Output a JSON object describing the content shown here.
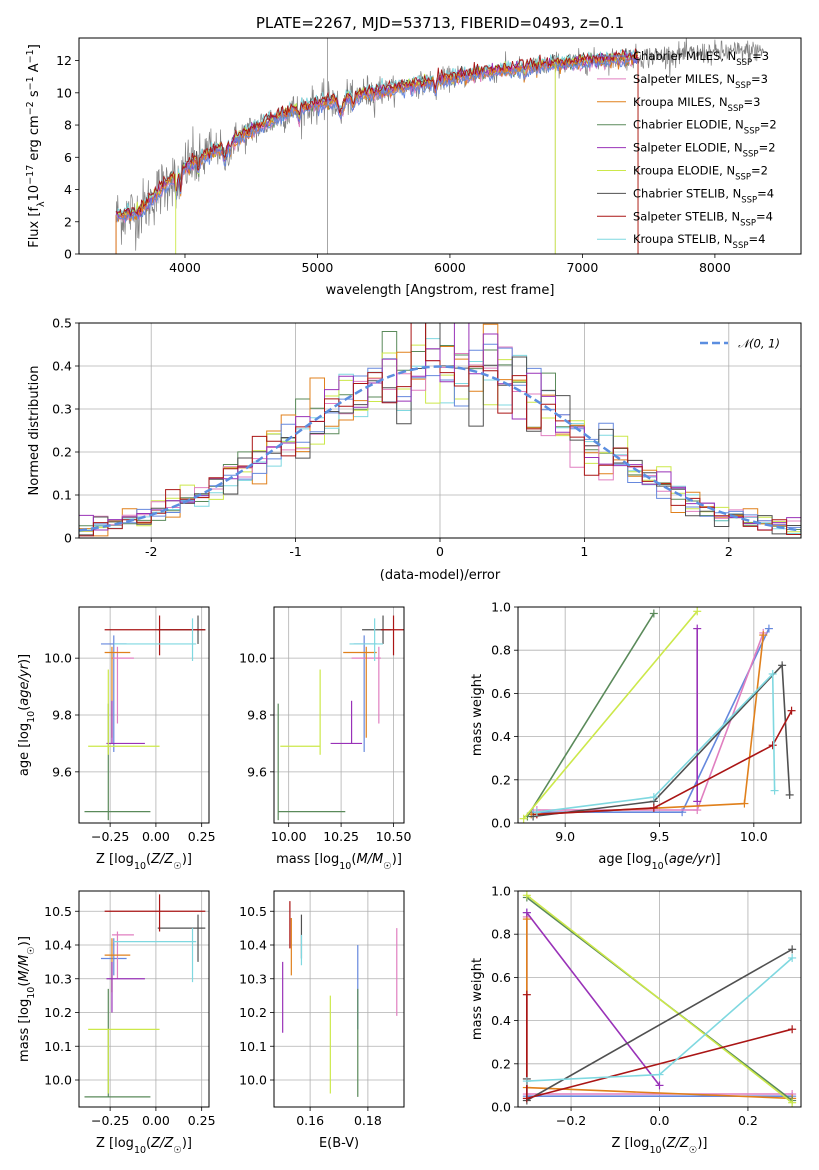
{
  "figure_title": "PLATE=2267, MJD=53713, FIBERID=0493, z=0.1",
  "series_names": [
    "Chabrier MILES, N_SSP=3",
    "Salpeter MILES, N_SSP=3",
    "Kroupa MILES, N_SSP=3",
    "Chabrier ELODIE, N_SSP=2",
    "Salpeter ELODIE, N_SSP=2",
    "Kroupa ELODIE, N_SSP=2",
    "Chabrier STELIB, N_SSP=4",
    "Salpeter STELIB, N_SSP=4",
    "Kroupa STELIB, N_SSP=4"
  ],
  "colors": {
    "data": "#808080",
    "series": [
      "#6688dd",
      "#e07fc0",
      "#e0801c",
      "#5a8a5a",
      "#9932b8",
      "#cce84a",
      "#505050",
      "#aa1515",
      "#7fd8e0"
    ],
    "normal": "#5b8ee0"
  },
  "chart_data": [
    {
      "id": "spectrum",
      "type": "line",
      "title": "PLATE=2267, MJD=53713, FIBERID=0493, z=0.1",
      "xlabel": "wavelength [Angstrom, rest frame]",
      "ylabel": "Flux [f_λ 10^-17 erg cm^-2 s^-1 A^-1]",
      "xlim": [
        3200,
        8650
      ],
      "ylim": [
        0,
        13.4
      ],
      "xticks": [
        4000,
        5000,
        6000,
        7000,
        8000
      ],
      "yticks": [
        0,
        2,
        4,
        6,
        8,
        10,
        12
      ],
      "grid": false,
      "legend": "upper right",
      "continuum": [
        [
          3500,
          2.4
        ],
        [
          3650,
          2.6
        ],
        [
          3750,
          3.4
        ],
        [
          3900,
          4.8
        ],
        [
          4000,
          5.4
        ],
        [
          4200,
          6.3
        ],
        [
          4400,
          7.2
        ],
        [
          4600,
          8.1
        ],
        [
          4800,
          8.9
        ],
        [
          5000,
          9.3
        ],
        [
          5200,
          9.7
        ],
        [
          5400,
          10.0
        ],
        [
          5600,
          10.3
        ],
        [
          5800,
          10.6
        ],
        [
          6000,
          10.9
        ],
        [
          6200,
          11.2
        ],
        [
          6500,
          11.5
        ],
        [
          6800,
          11.8
        ],
        [
          7100,
          12.0
        ],
        [
          7400,
          12.2
        ],
        [
          7800,
          12.4
        ],
        [
          8300,
          12.6
        ]
      ],
      "data_range": [
        3480,
        8370
      ],
      "model_range": [
        3480,
        7420
      ]
    },
    {
      "id": "residuals",
      "type": "histogram",
      "xlabel": "(data-model)/error",
      "ylabel": "Normed distribution",
      "xlim": [
        -2.5,
        2.5
      ],
      "ylim": [
        0,
        0.5
      ],
      "xticks": [
        -2,
        -1,
        0,
        1,
        2
      ],
      "yticks": [
        0.0,
        0.1,
        0.2,
        0.3,
        0.4,
        0.5
      ],
      "grid": true,
      "bins": 50,
      "reference_label": "𝒩(0, 1)",
      "reference": {
        "mean": 0,
        "sigma": 1
      },
      "legend": "upper right"
    },
    {
      "id": "age-Z",
      "type": "errorbar",
      "xlabel": "Z [log10(Z/Z☉)]",
      "ylabel": "age  [log10(age/yr)]",
      "xlim": [
        -0.42,
        0.29
      ],
      "ylim": [
        9.42,
        10.18
      ],
      "xticks": [
        -0.25,
        0.0,
        0.25
      ],
      "xticklabels": [
        "−0.25",
        "0.00",
        "0.25"
      ],
      "yticks": [
        9.6,
        9.8,
        10.0
      ],
      "yticklabels": [
        "9.6",
        "9.8",
        "10.0"
      ],
      "grid": true,
      "points": [
        {
          "s": 0,
          "x": -0.23,
          "xe": [
            0.07,
            0.07
          ],
          "y": 10.05,
          "ye": [
            0.38,
            0.03
          ]
        },
        {
          "s": 1,
          "x": -0.21,
          "xe": [
            0.03,
            0.09
          ],
          "y": 10.0,
          "ye": [
            0.23,
            0.04
          ]
        },
        {
          "s": 2,
          "x": -0.24,
          "xe": [
            0.04,
            0.1
          ],
          "y": 10.02,
          "ye": [
            0.3,
            0.02
          ]
        },
        {
          "s": 3,
          "x": -0.26,
          "xe": [
            0.13,
            0.23
          ],
          "y": 9.46,
          "ye": [
            0.03,
            0.38
          ]
        },
        {
          "s": 4,
          "x": -0.24,
          "xe": [
            0.03,
            0.18
          ],
          "y": 9.7,
          "ye": [
            0.0,
            0.15
          ]
        },
        {
          "s": 5,
          "x": -0.26,
          "xe": [
            0.11,
            0.28
          ],
          "y": 9.69,
          "ye": [
            0.03,
            0.27
          ]
        },
        {
          "s": 6,
          "x": 0.23,
          "xe": [
            0.22,
            0.04
          ],
          "y": 10.1,
          "ye": [
            0.05,
            0.05
          ]
        },
        {
          "s": 7,
          "x": 0.02,
          "xe": [
            0.3,
            0.25
          ],
          "y": 10.1,
          "ye": [
            0.09,
            0.05
          ]
        },
        {
          "s": 8,
          "x": 0.2,
          "xe": [
            0.43,
            0.02
          ],
          "y": 10.05,
          "ye": [
            0.06,
            0.09
          ]
        }
      ]
    },
    {
      "id": "age-mass",
      "type": "errorbar",
      "xlabel": "mass [log10(M/M☉)]",
      "ylabel": "",
      "xlim": [
        9.93,
        10.55
      ],
      "ylim": [
        9.42,
        10.18
      ],
      "xticks": [
        10.0,
        10.25,
        10.5
      ],
      "xticklabels": [
        "10.00",
        "10.25",
        "10.50"
      ],
      "yticks": [
        9.6,
        9.8,
        10.0
      ],
      "yticklabels": [
        "9.6",
        "9.8",
        "10.0"
      ],
      "grid": true,
      "points": [
        {
          "s": 0,
          "x": 10.36,
          "xe": [
            0.05,
            0.06
          ],
          "y": 10.05,
          "ye": [
            0.38,
            0.03
          ]
        },
        {
          "s": 1,
          "x": 10.43,
          "xe": [
            0.13,
            0.01
          ],
          "y": 10.0,
          "ye": [
            0.23,
            0.04
          ]
        },
        {
          "s": 2,
          "x": 10.37,
          "xe": [
            0.11,
            0.05
          ],
          "y": 10.02,
          "ye": [
            0.3,
            0.02
          ]
        },
        {
          "s": 3,
          "x": 9.95,
          "xe": [
            0.0,
            0.32
          ],
          "y": 9.46,
          "ye": [
            0.03,
            0.38
          ]
        },
        {
          "s": 4,
          "x": 10.3,
          "xe": [
            0.1,
            0.05
          ],
          "y": 9.7,
          "ye": [
            0.0,
            0.15
          ]
        },
        {
          "s": 5,
          "x": 10.15,
          "xe": [
            0.19,
            0.0
          ],
          "y": 9.69,
          "ye": [
            0.03,
            0.27
          ]
        },
        {
          "s": 6,
          "x": 10.45,
          "xe": [
            0.1,
            0.04
          ],
          "y": 10.1,
          "ye": [
            0.05,
            0.05
          ]
        },
        {
          "s": 7,
          "x": 10.5,
          "xe": [
            0.06,
            0.05
          ],
          "y": 10.1,
          "ye": [
            0.09,
            0.05
          ]
        },
        {
          "s": 8,
          "x": 10.41,
          "xe": [
            0.12,
            0.04
          ],
          "y": 10.05,
          "ye": [
            0.06,
            0.09
          ]
        }
      ]
    },
    {
      "id": "weight-age",
      "type": "line",
      "xlabel": "age  [log10(age/yr)]",
      "ylabel": "mass weight",
      "xlim": [
        8.75,
        10.25
      ],
      "ylim": [
        0,
        1
      ],
      "xticks": [
        9.0,
        9.5,
        10.0
      ],
      "xticklabels": [
        "9.0",
        "9.5",
        "10.0"
      ],
      "yticks": [
        0.0,
        0.2,
        0.4,
        0.6,
        0.8,
        1.0
      ],
      "yticklabels": [
        "0.0",
        "0.2",
        "0.4",
        "0.6",
        "0.8",
        "1.0"
      ],
      "grid": true,
      "series": [
        {
          "s": 0,
          "x": [
            8.83,
            9.62,
            10.08
          ],
          "y": [
            0.05,
            0.05,
            0.9
          ]
        },
        {
          "s": 1,
          "x": [
            8.85,
            9.7,
            10.05
          ],
          "y": [
            0.06,
            0.06,
            0.88
          ]
        },
        {
          "s": 2,
          "x": [
            8.82,
            9.95,
            10.05
          ],
          "y": [
            0.04,
            0.09,
            0.87
          ]
        },
        {
          "s": 3,
          "x": [
            8.8,
            9.47
          ],
          "y": [
            0.03,
            0.97
          ]
        },
        {
          "s": 4,
          "x": [
            9.7,
            9.7
          ],
          "y": [
            0.1,
            0.9
          ]
        },
        {
          "s": 5,
          "x": [
            8.78,
            9.7
          ],
          "y": [
            0.02,
            0.98
          ]
        },
        {
          "s": 6,
          "x": [
            8.83,
            9.47,
            10.15,
            10.19
          ],
          "y": [
            0.03,
            0.1,
            0.73,
            0.13
          ]
        },
        {
          "s": 7,
          "x": [
            8.85,
            9.47,
            10.1,
            10.2
          ],
          "y": [
            0.04,
            0.07,
            0.36,
            0.52
          ]
        },
        {
          "s": 8,
          "x": [
            8.85,
            9.47,
            10.1,
            10.11
          ],
          "y": [
            0.05,
            0.12,
            0.69,
            0.15
          ]
        }
      ]
    },
    {
      "id": "mass-Z",
      "type": "errorbar",
      "xlabel": "Z [log10(Z/Z☉)]",
      "ylabel": "mass [log10(M/M☉)]",
      "xlim": [
        -0.42,
        0.29
      ],
      "ylim": [
        9.92,
        10.56
      ],
      "xticks": [
        -0.25,
        0.0,
        0.25
      ],
      "xticklabels": [
        "−0.25",
        "0.00",
        "0.25"
      ],
      "yticks": [
        10.0,
        10.1,
        10.2,
        10.3,
        10.4,
        10.5
      ],
      "yticklabels": [
        "10.0",
        "10.1",
        "10.2",
        "10.3",
        "10.4",
        "10.5"
      ],
      "grid": true,
      "points": [
        {
          "s": 0,
          "x": -0.23,
          "xe": [
            0.07,
            0.07
          ],
          "y": 10.36,
          "ye": [
            0.05,
            0.06
          ]
        },
        {
          "s": 1,
          "x": -0.21,
          "xe": [
            0.03,
            0.09
          ],
          "y": 10.43,
          "ye": [
            0.13,
            0.01
          ]
        },
        {
          "s": 2,
          "x": -0.24,
          "xe": [
            0.04,
            0.1
          ],
          "y": 10.37,
          "ye": [
            0.11,
            0.05
          ]
        },
        {
          "s": 3,
          "x": -0.26,
          "xe": [
            0.13,
            0.23
          ],
          "y": 9.95,
          "ye": [
            0.0,
            0.32
          ]
        },
        {
          "s": 4,
          "x": -0.24,
          "xe": [
            0.03,
            0.18
          ],
          "y": 10.3,
          "ye": [
            0.1,
            0.05
          ]
        },
        {
          "s": 5,
          "x": -0.26,
          "xe": [
            0.11,
            0.28
          ],
          "y": 10.15,
          "ye": [
            0.19,
            0.0
          ]
        },
        {
          "s": 6,
          "x": 0.23,
          "xe": [
            0.22,
            0.04
          ],
          "y": 10.45,
          "ye": [
            0.1,
            0.04
          ]
        },
        {
          "s": 7,
          "x": 0.02,
          "xe": [
            0.3,
            0.25
          ],
          "y": 10.5,
          "ye": [
            0.06,
            0.05
          ]
        },
        {
          "s": 8,
          "x": 0.2,
          "xe": [
            0.43,
            0.02
          ],
          "y": 10.41,
          "ye": [
            0.12,
            0.04
          ]
        }
      ]
    },
    {
      "id": "mass-EBV",
      "type": "errorbar",
      "xlabel": "E(B-V)",
      "ylabel": "",
      "xlim": [
        0.1475,
        0.1925
      ],
      "ylim": [
        9.92,
        10.56
      ],
      "xticks": [
        0.16,
        0.18
      ],
      "xticklabels": [
        "0.16",
        "0.18"
      ],
      "yticks": [
        10.0,
        10.1,
        10.2,
        10.3,
        10.4,
        10.5
      ],
      "yticklabels": [
        "10.0",
        "10.1",
        "10.2",
        "10.3",
        "10.4",
        "10.5"
      ],
      "grid": true,
      "points": [
        {
          "s": 0,
          "x": 0.1765,
          "xe": [
            0,
            0
          ],
          "y": 10.25,
          "ye": [
            0.1,
            0.15
          ]
        },
        {
          "s": 1,
          "x": 0.19,
          "xe": [
            0,
            0
          ],
          "y": 10.35,
          "ye": [
            0.16,
            0.1
          ]
        },
        {
          "s": 2,
          "x": 0.1535,
          "xe": [
            0,
            0
          ],
          "y": 10.43,
          "ye": [
            0.12,
            0.05
          ]
        },
        {
          "s": 3,
          "x": 0.1765,
          "xe": [
            0,
            0
          ],
          "y": 10.15,
          "ye": [
            0.2,
            0.12
          ]
        },
        {
          "s": 4,
          "x": 0.1505,
          "xe": [
            0,
            0
          ],
          "y": 10.25,
          "ye": [
            0.11,
            0.1
          ]
        },
        {
          "s": 5,
          "x": 0.167,
          "xe": [
            0,
            0
          ],
          "y": 10.1,
          "ye": [
            0.14,
            0.15
          ]
        },
        {
          "s": 6,
          "x": 0.157,
          "xe": [
            0,
            0
          ],
          "y": 10.42,
          "ye": [
            0.06,
            0.07
          ]
        },
        {
          "s": 7,
          "x": 0.153,
          "xe": [
            0,
            0
          ],
          "y": 10.45,
          "ye": [
            0.06,
            0.08
          ]
        },
        {
          "s": 8,
          "x": 0.157,
          "xe": [
            0,
            0
          ],
          "y": 10.38,
          "ye": [
            0.04,
            0.05
          ]
        }
      ]
    },
    {
      "id": "weight-Z",
      "type": "line",
      "xlabel": "Z [log10(Z/Z☉)]",
      "ylabel": "mass weight",
      "xlim": [
        -0.32,
        0.32
      ],
      "ylim": [
        0,
        1
      ],
      "xticks": [
        -0.2,
        0.0,
        0.2
      ],
      "xticklabels": [
        "−0.2",
        "0.0",
        "0.2"
      ],
      "yticks": [
        0.0,
        0.2,
        0.4,
        0.6,
        0.8,
        1.0
      ],
      "yticklabels": [
        "0.0",
        "0.2",
        "0.4",
        "0.6",
        "0.8",
        "1.0"
      ],
      "grid": true,
      "series": [
        {
          "s": 0,
          "x": [
            -0.3,
            -0.3,
            0.3
          ],
          "y": [
            0.9,
            0.05,
            0.05
          ]
        },
        {
          "s": 1,
          "x": [
            -0.3,
            -0.3,
            0.3
          ],
          "y": [
            0.88,
            0.06,
            0.06
          ]
        },
        {
          "s": 2,
          "x": [
            -0.3,
            -0.3,
            0.3
          ],
          "y": [
            0.87,
            0.09,
            0.04
          ]
        },
        {
          "s": 3,
          "x": [
            -0.3,
            0.3
          ],
          "y": [
            0.97,
            0.03
          ]
        },
        {
          "s": 4,
          "x": [
            -0.3,
            0.0
          ],
          "y": [
            0.9,
            0.1
          ]
        },
        {
          "s": 5,
          "x": [
            -0.3,
            0.3
          ],
          "y": [
            0.98,
            0.02
          ]
        },
        {
          "s": 6,
          "x": [
            -0.3,
            -0.3,
            0.3
          ],
          "y": [
            0.13,
            0.03,
            0.73
          ]
        },
        {
          "s": 7,
          "x": [
            -0.3,
            -0.3,
            0.3
          ],
          "y": [
            0.52,
            0.04,
            0.36
          ]
        },
        {
          "s": 8,
          "x": [
            -0.3,
            0.0,
            0.3
          ],
          "y": [
            0.12,
            0.15,
            0.69
          ]
        }
      ]
    }
  ]
}
